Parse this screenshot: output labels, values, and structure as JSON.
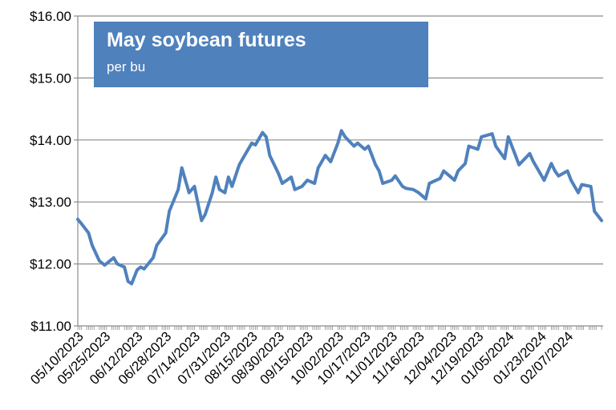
{
  "chart_data": {
    "type": "line",
    "title": "May soybean futures",
    "subtitle": "per bu",
    "xlabel": "",
    "ylabel": "",
    "ylim": [
      11,
      16
    ],
    "y_ticks": [
      "$11.00",
      "$12.00",
      "$13.00",
      "$14.00",
      "$15.00",
      "$16.00"
    ],
    "y_tick_values": [
      11,
      12,
      13,
      14,
      15,
      16
    ],
    "x_tick_labels": [
      "05/10/2023",
      "05/25/2023",
      "06/12/2023",
      "06/28/2023",
      "07/14/2023",
      "07/31/2023",
      "08/15/2023",
      "08/30/2023",
      "09/15/2023",
      "10/02/2023",
      "10/17/2023",
      "11/01/2023",
      "11/16/2023",
      "12/04/2023",
      "12/19/2023",
      "01/05/2024",
      "01/23/2024",
      "02/07/2024"
    ],
    "grid": true,
    "legend": "none",
    "line_color": "#4f81bd",
    "title_box_color": "#4f81bd",
    "series": [
      {
        "x": [
          "05/10/2023",
          "05/12/2023",
          "05/16/2023",
          "05/18/2023",
          "05/22/2023",
          "05/25/2023",
          "05/30/2023",
          "06/01/2023",
          "06/05/2023",
          "06/07/2023",
          "06/09/2023",
          "06/12/2023",
          "06/14/2023",
          "06/16/2023",
          "06/21/2023",
          "06/23/2023",
          "06/28/2023",
          "06/30/2023",
          "07/05/2023",
          "07/07/2023",
          "07/11/2023",
          "07/14/2023",
          "07/18/2023",
          "07/20/2023",
          "07/24/2023",
          "07/26/2023",
          "07/28/2023",
          "07/31/2023",
          "08/02/2023",
          "08/04/2023",
          "08/08/2023",
          "08/10/2023",
          "08/15/2023",
          "08/17/2023",
          "08/21/2023",
          "08/23/2023",
          "08/25/2023",
          "08/30/2023",
          "09/01/2023",
          "09/06/2023",
          "09/08/2023",
          "09/12/2023",
          "09/15/2023",
          "09/19/2023",
          "09/21/2023",
          "09/25/2023",
          "09/28/2023",
          "10/02/2023",
          "10/04/2023",
          "10/06/2023",
          "10/11/2023",
          "10/13/2023",
          "10/17/2023",
          "10/19/2023",
          "10/23/2023",
          "10/25/2023",
          "10/27/2023",
          "11/01/2023",
          "11/03/2023",
          "11/07/2023",
          "11/09/2023",
          "11/13/2023",
          "11/16/2023",
          "11/20/2023",
          "11/22/2023",
          "11/28/2023",
          "11/30/2023",
          "12/04/2023",
          "12/06/2023",
          "12/08/2023",
          "12/12/2023",
          "12/14/2023",
          "12/19/2023",
          "12/21/2023",
          "12/27/2023",
          "12/29/2023",
          "01/03/2024",
          "01/05/2024",
          "01/09/2024",
          "01/11/2024",
          "01/17/2024",
          "01/19/2024",
          "01/23/2024",
          "01/25/2024",
          "01/29/2024",
          "01/31/2024",
          "02/02/2024",
          "02/07/2024",
          "02/09/2024",
          "02/13/2024",
          "02/15/2024",
          "02/20/2024",
          "02/22/2024",
          "02/26/2024"
        ],
        "values": [
          12.72,
          12.65,
          12.5,
          12.3,
          12.05,
          11.98,
          12.1,
          12.0,
          11.95,
          11.72,
          11.68,
          11.9,
          11.95,
          11.92,
          12.1,
          12.3,
          12.5,
          12.85,
          13.2,
          13.55,
          13.15,
          13.25,
          12.7,
          12.8,
          13.15,
          13.4,
          13.2,
          13.15,
          13.4,
          13.25,
          13.6,
          13.7,
          13.95,
          13.92,
          14.12,
          14.05,
          13.75,
          13.45,
          13.3,
          13.4,
          13.2,
          13.25,
          13.35,
          13.3,
          13.55,
          13.75,
          13.65,
          13.95,
          14.15,
          14.05,
          13.9,
          13.95,
          13.85,
          13.9,
          13.6,
          13.5,
          13.3,
          13.35,
          13.42,
          13.25,
          13.22,
          13.2,
          13.15,
          13.05,
          13.3,
          13.38,
          13.5,
          13.4,
          13.35,
          13.5,
          13.62,
          13.9,
          13.85,
          14.05,
          14.1,
          13.9,
          13.7,
          14.05,
          13.75,
          13.6,
          13.78,
          13.65,
          13.45,
          13.35,
          13.62,
          13.5,
          13.42,
          13.5,
          13.35,
          13.15,
          13.28,
          13.25,
          12.85,
          12.7
        ]
      }
    ]
  }
}
